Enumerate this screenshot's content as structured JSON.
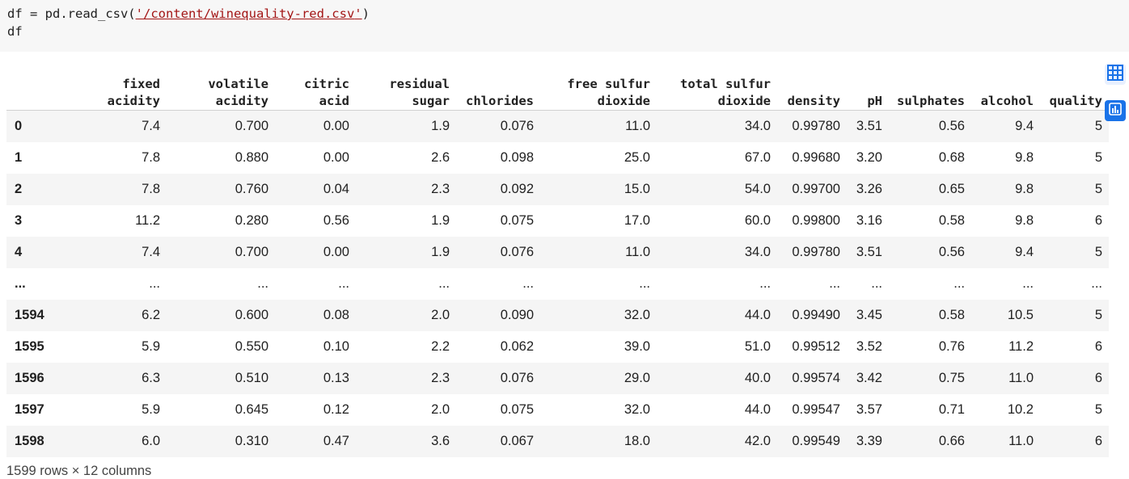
{
  "code": {
    "line1_prefix": "df = pd.read_csv(",
    "line1_quote_open": "'",
    "line1_path": "/content/winequality-red.csv",
    "line1_quote_close": "'",
    "line1_suffix": ")",
    "line2": "df"
  },
  "table": {
    "columns": [
      "",
      "fixed\nacidity",
      "volatile\nacidity",
      "citric\nacid",
      "residual\nsugar",
      "chlorides",
      "free sulfur\ndioxide",
      "total sulfur\ndioxide",
      "density",
      "pH",
      "sulphates",
      "alcohol",
      "quality"
    ],
    "rows": [
      [
        "0",
        "7.4",
        "0.700",
        "0.00",
        "1.9",
        "0.076",
        "11.0",
        "34.0",
        "0.99780",
        "3.51",
        "0.56",
        "9.4",
        "5"
      ],
      [
        "1",
        "7.8",
        "0.880",
        "0.00",
        "2.6",
        "0.098",
        "25.0",
        "67.0",
        "0.99680",
        "3.20",
        "0.68",
        "9.8",
        "5"
      ],
      [
        "2",
        "7.8",
        "0.760",
        "0.04",
        "2.3",
        "0.092",
        "15.0",
        "54.0",
        "0.99700",
        "3.26",
        "0.65",
        "9.8",
        "5"
      ],
      [
        "3",
        "11.2",
        "0.280",
        "0.56",
        "1.9",
        "0.075",
        "17.0",
        "60.0",
        "0.99800",
        "3.16",
        "0.58",
        "9.8",
        "6"
      ],
      [
        "4",
        "7.4",
        "0.700",
        "0.00",
        "1.9",
        "0.076",
        "11.0",
        "34.0",
        "0.99780",
        "3.51",
        "0.56",
        "9.4",
        "5"
      ],
      [
        "...",
        "...",
        "...",
        "...",
        "...",
        "...",
        "...",
        "...",
        "...",
        "...",
        "...",
        "...",
        "..."
      ],
      [
        "1594",
        "6.2",
        "0.600",
        "0.08",
        "2.0",
        "0.090",
        "32.0",
        "44.0",
        "0.99490",
        "3.45",
        "0.58",
        "10.5",
        "5"
      ],
      [
        "1595",
        "5.9",
        "0.550",
        "0.10",
        "2.2",
        "0.062",
        "39.0",
        "51.0",
        "0.99512",
        "3.52",
        "0.76",
        "11.2",
        "6"
      ],
      [
        "1596",
        "6.3",
        "0.510",
        "0.13",
        "2.3",
        "0.076",
        "29.0",
        "40.0",
        "0.99574",
        "3.42",
        "0.75",
        "11.0",
        "6"
      ],
      [
        "1597",
        "5.9",
        "0.645",
        "0.12",
        "2.0",
        "0.075",
        "32.0",
        "44.0",
        "0.99547",
        "3.57",
        "0.71",
        "10.2",
        "5"
      ],
      [
        "1598",
        "6.0",
        "0.310",
        "0.47",
        "3.6",
        "0.067",
        "18.0",
        "42.0",
        "0.99549",
        "3.39",
        "0.66",
        "11.0",
        "6"
      ]
    ]
  },
  "footer": "1599 rows × 12 columns",
  "side_actions": [
    {
      "icon": "table-icon",
      "color": "#1a73e8"
    },
    {
      "icon": "bar-chart-icon",
      "color": "#1a73e8"
    }
  ]
}
